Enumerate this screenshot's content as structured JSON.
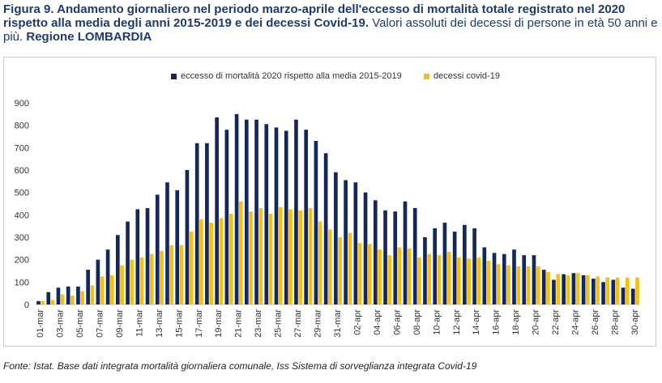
{
  "title": {
    "bold": "Figura 9. Andamento giornaliero nel periodo marzo-aprile dell'eccesso di mortalità totale registrato nel 2020 rispetto alla media degli anni 2015-2019 e dei decessi Covid-19.",
    "normal": " Valori assoluti dei decessi di persone in età 50 anni e più. ",
    "region": "Regione LOMBARDIA"
  },
  "source": "Fonte: Istat. Base dati integrata mortalità giornaliera comunale, Iss Sistema di sorveglianza integrata Covid-19",
  "colors": {
    "excess": "#14265a",
    "covid": "#f5bf1a"
  },
  "chart_data": {
    "type": "bar",
    "ylim": [
      0,
      900
    ],
    "yticks": [
      "0",
      "100",
      "200",
      "300",
      "400",
      "500",
      "600",
      "700",
      "800",
      "900"
    ],
    "categories": [
      "01-mar",
      "02-mar",
      "03-mar",
      "04-mar",
      "05-mar",
      "06-mar",
      "07-mar",
      "08-mar",
      "09-mar",
      "10-mar",
      "11-mar",
      "12-mar",
      "13-mar",
      "14-mar",
      "15-mar",
      "16-mar",
      "17-mar",
      "18-mar",
      "19-mar",
      "20-mar",
      "21-mar",
      "22-mar",
      "23-mar",
      "24-mar",
      "25-mar",
      "26-mar",
      "27-mar",
      "28-mar",
      "29-mar",
      "30-mar",
      "31-mar",
      "01-apr",
      "02-apr",
      "03-apr",
      "04-apr",
      "05-apr",
      "06-apr",
      "07-apr",
      "08-apr",
      "09-apr",
      "10-apr",
      "11-apr",
      "12-apr",
      "13-apr",
      "14-apr",
      "15-apr",
      "16-apr",
      "17-apr",
      "18-apr",
      "19-apr",
      "20-apr",
      "21-apr",
      "22-apr",
      "23-apr",
      "24-apr",
      "25-apr",
      "26-apr",
      "27-apr",
      "28-apr",
      "29-apr",
      "30-apr"
    ],
    "tick_labels": [
      "01-mar",
      "03-mar",
      "05-mar",
      "07-mar",
      "09-mar",
      "11-mar",
      "13-mar",
      "15-mar",
      "17-mar",
      "19-mar",
      "21-mar",
      "23-mar",
      "25-mar",
      "27-mar",
      "29-mar",
      "31-mar",
      "02-apr",
      "04-apr",
      "06-apr",
      "08-apr",
      "10-apr",
      "12-apr",
      "14-apr",
      "16-apr",
      "18-apr",
      "20-apr",
      "22-apr",
      "24-apr",
      "26-apr",
      "28-apr",
      "30-apr"
    ],
    "series": [
      {
        "name": "eccesso di mortalità  2020 rispetto alla media 2015-2019",
        "values": [
          15,
          55,
          75,
          80,
          80,
          155,
          200,
          245,
          310,
          370,
          425,
          430,
          490,
          545,
          510,
          600,
          720,
          720,
          835,
          780,
          850,
          825,
          825,
          805,
          790,
          775,
          825,
          780,
          730,
          675,
          590,
          555,
          545,
          500,
          465,
          420,
          415,
          460,
          430,
          300,
          340,
          365,
          325,
          355,
          340,
          255,
          230,
          225,
          245,
          220,
          220,
          155,
          110,
          135,
          140,
          130,
          115,
          100,
          110,
          75,
          70
        ]
      },
      {
        "name": "decessi covid-19",
        "values": [
          15,
          20,
          45,
          40,
          60,
          85,
          125,
          130,
          175,
          200,
          210,
          225,
          240,
          265,
          265,
          325,
          380,
          365,
          385,
          405,
          460,
          415,
          430,
          405,
          435,
          425,
          420,
          430,
          370,
          335,
          300,
          320,
          275,
          270,
          245,
          220,
          255,
          250,
          210,
          225,
          220,
          235,
          210,
          205,
          210,
          195,
          180,
          175,
          170,
          170,
          170,
          145,
          135,
          130,
          140,
          130,
          125,
          120,
          120,
          120,
          120
        ]
      }
    ]
  }
}
